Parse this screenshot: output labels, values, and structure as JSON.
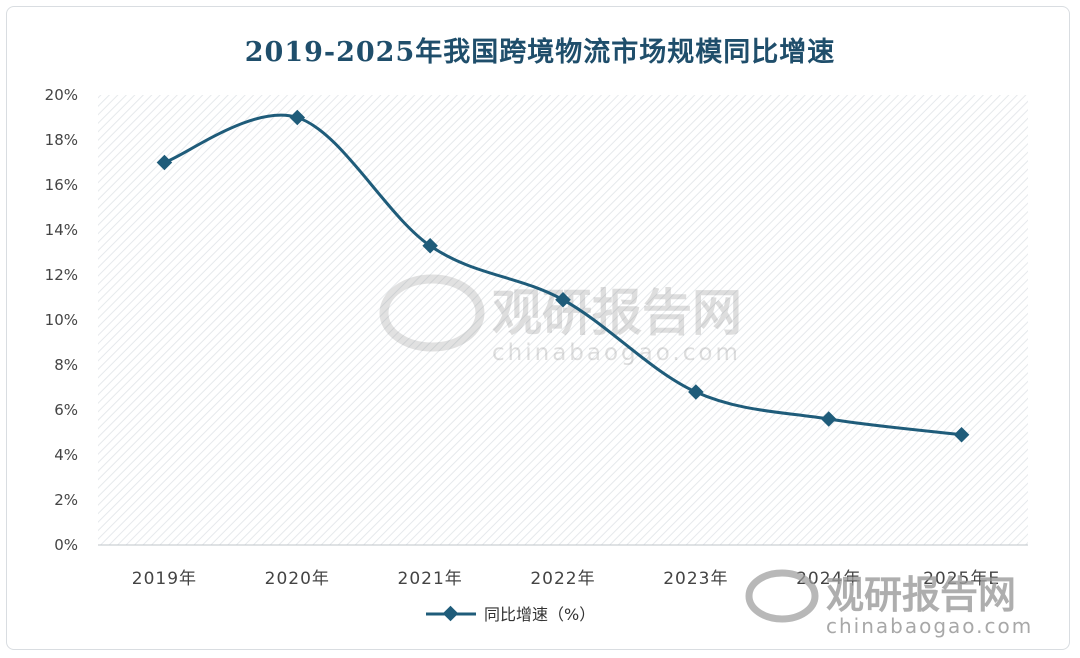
{
  "chart_data": {
    "type": "line",
    "title": "2019-2025年我国跨境物流市场规模同比增速",
    "categories": [
      "2019年",
      "2020年",
      "2021年",
      "2022年",
      "2023年",
      "2024年",
      "2025年E"
    ],
    "series": [
      {
        "name": "同比增速（%）",
        "values": [
          17.0,
          19.0,
          13.3,
          10.9,
          6.8,
          5.6,
          4.9
        ],
        "color": "#1f5c7a"
      }
    ],
    "ylim": [
      0,
      20
    ],
    "yticks": [
      0,
      2,
      4,
      6,
      8,
      10,
      12,
      14,
      16,
      18,
      20
    ],
    "ytick_format": "%",
    "xlabel": "",
    "ylabel": "",
    "legend": "bottom-center",
    "grid": false,
    "smooth": true,
    "marker": "diamond",
    "background": "hatched"
  },
  "watermark": {
    "brand": "观研报告网",
    "url": "chinabaogao.com"
  }
}
